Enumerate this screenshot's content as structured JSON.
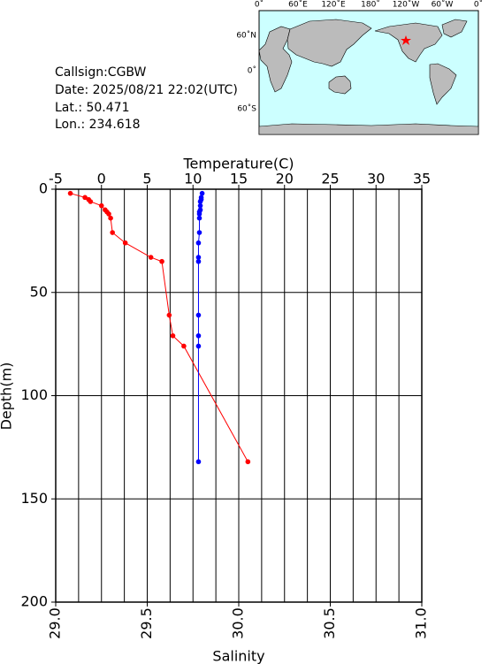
{
  "info": {
    "callsign": "Callsign:CGBW",
    "date": "Date:  2025/08/21 22:02(UTC)",
    "lat": "Lat.:  50.471",
    "lon": "Lon.:  234.618"
  },
  "map": {
    "top_labels": [
      "0˚",
      "60˚E",
      "120˚E",
      "180˚",
      "120˚W",
      "60˚W",
      "0˚"
    ],
    "left_labels": [
      "60˚N",
      "0˚",
      "60˚S"
    ]
  },
  "chart_data": {
    "type": "line",
    "xlabel": "Salinity",
    "x2label": "Temperature(C)",
    "ylabel": "Depth(m)",
    "xlim": [
      29,
      31
    ],
    "xticks": [
      {
        "value": 29,
        "label": "29.0"
      },
      {
        "value": 29.5,
        "label": "29.5"
      },
      {
        "value": 30,
        "label": "30.0"
      },
      {
        "value": 30.5,
        "label": "30.5"
      },
      {
        "value": 31,
        "label": "31.0"
      }
    ],
    "x2lim": [
      -5,
      35
    ],
    "x2ticks": [
      -5,
      0,
      5,
      10,
      15,
      20,
      25,
      30,
      35
    ],
    "x2grid": [
      -2.5,
      0,
      2.5,
      5,
      7.5,
      10,
      12.5,
      15,
      17.5,
      20,
      22.5,
      25,
      27.5,
      30,
      32.5
    ],
    "ylim": [
      0,
      200
    ],
    "yticks": [
      0,
      50,
      100,
      150,
      200
    ],
    "ygrid": [
      50,
      100,
      150
    ],
    "series": [
      {
        "name": "Salinity",
        "color": "#ff0000",
        "axis": "x",
        "depth": [
          2,
          4,
          5,
          6,
          8,
          10,
          11,
          12,
          14,
          21,
          26,
          33,
          35,
          61,
          71,
          76,
          132
        ],
        "values": [
          29.08,
          29.16,
          29.18,
          29.19,
          29.25,
          29.27,
          29.28,
          29.29,
          29.3,
          29.31,
          29.38,
          29.52,
          29.58,
          29.62,
          29.64,
          29.7,
          30.05
        ]
      },
      {
        "name": "Temperature",
        "color": "#0000ff",
        "axis": "x2",
        "depth": [
          2,
          4,
          5,
          6,
          8,
          10,
          11,
          12,
          14,
          21,
          26,
          33,
          35,
          61,
          71,
          76,
          132
        ],
        "values": [
          11.0,
          10.9,
          10.9,
          10.8,
          10.8,
          10.8,
          10.7,
          10.7,
          10.7,
          10.7,
          10.6,
          10.6,
          10.6,
          10.6,
          10.6,
          10.6,
          10.6
        ]
      }
    ]
  }
}
